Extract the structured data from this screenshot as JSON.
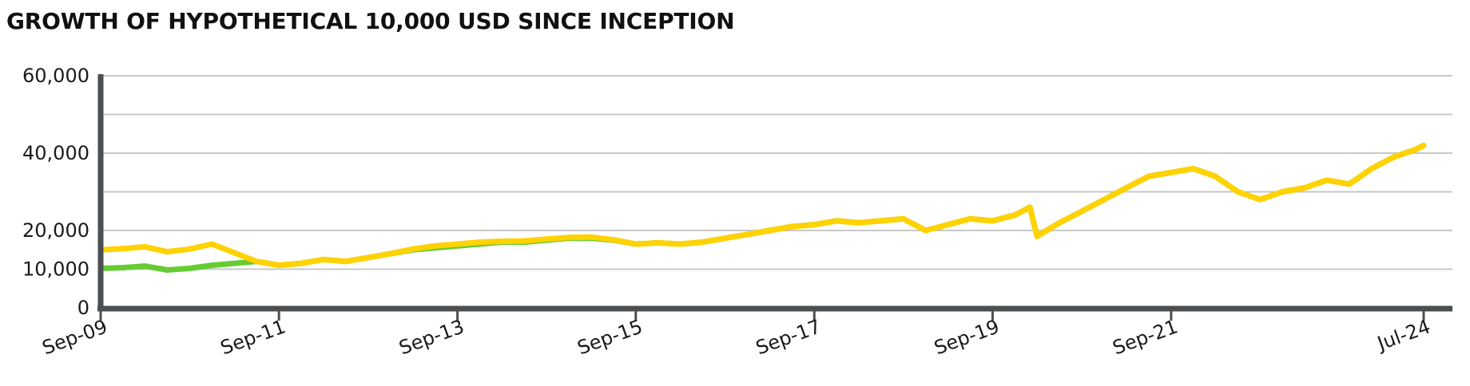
{
  "chart_data": {
    "type": "line",
    "title": "GROWTH OF HYPOTHETICAL 10,000 USD SINCE INCEPTION",
    "xlabel": "",
    "ylabel": "",
    "ylim": [
      0,
      60000
    ],
    "y_ticks": [
      {
        "value": 0,
        "label": "0"
      },
      {
        "value": 10000,
        "label": "10,000"
      },
      {
        "value": 20000,
        "label": "20,000"
      },
      {
        "value": 40000,
        "label": "40,000"
      },
      {
        "value": 60000,
        "label": "60,000"
      }
    ],
    "y_gridlines": [
      10000,
      20000,
      30000,
      40000,
      50000,
      60000
    ],
    "x_ticks": [
      "Sep-09",
      "Sep-11",
      "Sep-13",
      "Sep-15",
      "Sep-17",
      "Sep-19",
      "Sep-21",
      "Jul-24"
    ],
    "grid": true,
    "legend": "none",
    "colors": {
      "series_green": "#66cc33",
      "series_yellow": "#ffd200",
      "axis": "#4a4f52",
      "grid": "#c8c8c8"
    },
    "series": [
      {
        "color": "#66cc33",
        "x": [
          "2009-09",
          "2009-12",
          "2010-03",
          "2010-06",
          "2010-09",
          "2010-12",
          "2011-06",
          "2011-09",
          "2011-12",
          "2012-03",
          "2012-06",
          "2012-09",
          "2012-12",
          "2013-03",
          "2013-06",
          "2013-09",
          "2013-12",
          "2014-03",
          "2014-06",
          "2014-09",
          "2014-12",
          "2015-03",
          "2015-06",
          "2015-09",
          "2015-12",
          "2016-03",
          "2016-06",
          "2016-09",
          "2016-12",
          "2017-03",
          "2017-06",
          "2017-09",
          "2017-12",
          "2018-03",
          "2018-06",
          "2018-09",
          "2018-12",
          "2019-03",
          "2019-06",
          "2019-09",
          "2019-12",
          "2020-02",
          "2020-03",
          "2020-06",
          "2020-09",
          "2020-12",
          "2021-03",
          "2021-06",
          "2021-09",
          "2021-12",
          "2022-03",
          "2022-06",
          "2022-09",
          "2022-12",
          "2023-03",
          "2023-06",
          "2023-09",
          "2023-12",
          "2024-03",
          "2024-06",
          "2024-07"
        ],
        "values": [
          10200,
          10400,
          10800,
          9800,
          10200,
          11000,
          12000,
          11000,
          11500,
          12500,
          12000,
          13000,
          14000,
          15000,
          15500,
          16000,
          16500,
          17000,
          17000,
          17500,
          18000,
          18000,
          17500,
          16500,
          16800,
          16500,
          17000,
          18000,
          19000,
          20000,
          21000,
          21500,
          22500,
          22000,
          22500,
          23000,
          20000,
          21500,
          23000,
          22500,
          24000,
          26000,
          18500,
          22000,
          25000,
          28000,
          31000,
          34000,
          35000,
          36000,
          34000,
          30000,
          28000,
          30000,
          31000,
          33000,
          32000,
          36000,
          39000,
          41000,
          42000
        ]
      },
      {
        "color": "#ffd200",
        "x": [
          "2009-09",
          "2009-12",
          "2010-03",
          "2010-06",
          "2010-09",
          "2010-12",
          "2011-06",
          "2011-09",
          "2011-12",
          "2012-03",
          "2012-06",
          "2012-09",
          "2012-12",
          "2013-03",
          "2013-06",
          "2013-09",
          "2013-12",
          "2014-03",
          "2014-06",
          "2014-09",
          "2014-12",
          "2015-03",
          "2015-06",
          "2015-09",
          "2015-12",
          "2016-03",
          "2016-06",
          "2016-09",
          "2016-12",
          "2017-03",
          "2017-06",
          "2017-09",
          "2017-12",
          "2018-03",
          "2018-06",
          "2018-09",
          "2018-12",
          "2019-03",
          "2019-06",
          "2019-09",
          "2019-12",
          "2020-02",
          "2020-03",
          "2020-06",
          "2020-09",
          "2020-12",
          "2021-03",
          "2021-06",
          "2021-09",
          "2021-12",
          "2022-03",
          "2022-06",
          "2022-09",
          "2022-12",
          "2023-03",
          "2023-06",
          "2023-09",
          "2023-12",
          "2024-03",
          "2024-06",
          "2024-07"
        ],
        "values": [
          15000,
          15300,
          15800,
          14500,
          15200,
          16500,
          12000,
          11000,
          11500,
          12500,
          12000,
          13000,
          14000,
          15200,
          16000,
          16500,
          17000,
          17200,
          17300,
          17800,
          18200,
          18300,
          17600,
          16500,
          16800,
          16500,
          17000,
          18000,
          19000,
          20000,
          21000,
          21500,
          22500,
          22000,
          22500,
          23000,
          20000,
          21500,
          23000,
          22500,
          24000,
          26000,
          18500,
          22000,
          25000,
          28000,
          31000,
          34000,
          35000,
          36000,
          34000,
          30000,
          28000,
          30000,
          31000,
          33000,
          32000,
          36000,
          39000,
          41000,
          42000
        ]
      }
    ]
  }
}
